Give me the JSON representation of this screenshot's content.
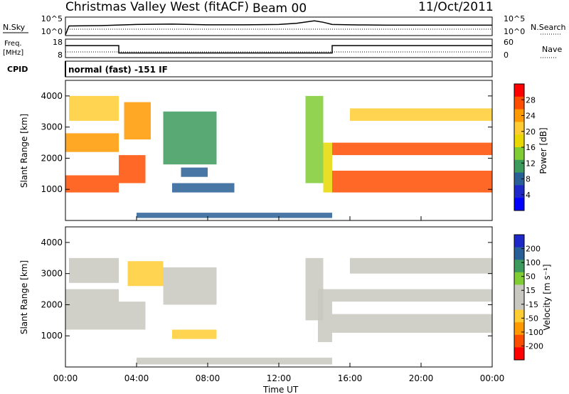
{
  "header": {
    "station": "Christmas Valley West (fitACF)",
    "beam": "Beam 00",
    "date": "11/Oct/2011"
  },
  "panels": {
    "nsky": {
      "label": "N.Sky",
      "left_ticks": [
        "10^5",
        "10^0"
      ],
      "right_ticks": [
        "10^5",
        "10^0"
      ],
      "right_label": "N.Search"
    },
    "freq": {
      "label_line1": "Freq.",
      "label_line2": "[MHz]",
      "left_ticks": [
        "18",
        "8"
      ],
      "right_ticks": [
        "60",
        "0"
      ],
      "right_label": "Nave"
    },
    "cpid": {
      "label": "CPID",
      "text": "normal (fast) -151 IF"
    },
    "power": {
      "ylabel": "Slant Range [km]",
      "yticks": [
        "4000",
        "3000",
        "2000",
        "1000"
      ],
      "colorbar_label": "Power [dB]",
      "colorbar_ticks": [
        "28",
        "24",
        "20",
        "16",
        "12",
        "8",
        "4"
      ],
      "colorbar_colors": [
        "#ff0000",
        "#ff4d00",
        "#ff9900",
        "#ffcc33",
        "#e8d800",
        "#7fcc33",
        "#3c9a5c",
        "#285f96",
        "#1e28c8",
        "#0000ff"
      ]
    },
    "velocity": {
      "ylabel": "Slant Range [km]",
      "yticks": [
        "4000",
        "3000",
        "2000",
        "1000"
      ],
      "colorbar_label": "Velocity [m s⁻¹]",
      "colorbar_ticks": [
        "200",
        "100",
        "50",
        "15",
        "-15",
        "-50",
        "-100",
        "-200"
      ],
      "colorbar_colors": [
        "#1e28c8",
        "#285f96",
        "#3c9a5c",
        "#7fcc33",
        "#c8c8c0",
        "#c8c8c0",
        "#ffcc33",
        "#ff9900",
        "#ff4d00",
        "#ff0000"
      ]
    }
  },
  "xaxis": {
    "ticks": [
      "00:00",
      "04:00",
      "08:00",
      "12:00",
      "16:00",
      "20:00",
      "00:00"
    ],
    "label": "Time UT"
  },
  "chart_data": [
    {
      "type": "line",
      "name": "N.Sky",
      "x_hours": [
        0,
        0.2,
        2,
        4,
        6,
        8,
        10,
        12,
        13,
        14,
        14.5,
        15,
        16,
        18,
        20,
        22,
        24
      ],
      "y_log": [
        0.2,
        2.6,
        2.7,
        3.0,
        3.1,
        2.9,
        2.9,
        3.0,
        3.3,
        4.0,
        3.6,
        3.0,
        2.9,
        2.8,
        2.8,
        2.8,
        2.8
      ]
    },
    {
      "type": "line",
      "name": "Freq",
      "steps": [
        {
          "from_hour": 0,
          "to_hour": 3.0,
          "mhz": 14.5
        },
        {
          "from_hour": 3.0,
          "to_hour": 15.0,
          "mhz": 10.5
        },
        {
          "from_hour": 15.0,
          "to_hour": 24,
          "mhz": 14.5
        }
      ],
      "ylim": [
        8,
        18
      ]
    },
    {
      "type": "heatmap",
      "name": "Power",
      "xlim": [
        0,
        24
      ],
      "ylim": [
        0,
        4500
      ],
      "zlim": [
        0,
        30
      ],
      "regions": [
        {
          "t0": 0,
          "t1": 3.0,
          "r0": 900,
          "r1": 1450,
          "z": 28
        },
        {
          "t0": 0,
          "t1": 3.0,
          "r0": 2200,
          "r1": 2800,
          "z": 24
        },
        {
          "t0": 0.2,
          "t1": 3.0,
          "r0": 3200,
          "r1": 4000,
          "z": 20
        },
        {
          "t0": 3.0,
          "t1": 4.5,
          "r0": 1200,
          "r1": 2100,
          "z": 26
        },
        {
          "t0": 3.3,
          "t1": 4.8,
          "r0": 2600,
          "r1": 3800,
          "z": 22
        },
        {
          "t0": 5.5,
          "t1": 8.5,
          "r0": 1800,
          "r1": 3500,
          "z": 10
        },
        {
          "t0": 6.0,
          "t1": 9.5,
          "r0": 900,
          "r1": 1200,
          "z": 6
        },
        {
          "t0": 6.5,
          "t1": 8.0,
          "r0": 1400,
          "r1": 1700,
          "z": 7
        },
        {
          "t0": 13.5,
          "t1": 14.5,
          "r0": 1200,
          "r1": 4000,
          "z": 14
        },
        {
          "t0": 14.5,
          "t1": 15.0,
          "r0": 900,
          "r1": 2500,
          "z": 16
        },
        {
          "t0": 15.0,
          "t1": 24,
          "r0": 900,
          "r1": 1600,
          "z": 28
        },
        {
          "t0": 15.0,
          "t1": 24,
          "r0": 2100,
          "r1": 2500,
          "z": 26
        },
        {
          "t0": 16.0,
          "t1": 24,
          "r0": 3200,
          "r1": 3600,
          "z": 20
        },
        {
          "t0": 4.0,
          "t1": 15.0,
          "r0": 80,
          "r1": 250,
          "z": 6
        }
      ]
    },
    {
      "type": "heatmap",
      "name": "Velocity",
      "xlim": [
        0,
        24
      ],
      "ylim": [
        0,
        4500
      ],
      "zlim": [
        -200,
        200
      ],
      "regions": [
        {
          "t0": 0,
          "t1": 3.0,
          "r0": 1200,
          "r1": 2500,
          "z": 0
        },
        {
          "t0": 0.2,
          "t1": 3.0,
          "r0": 2700,
          "r1": 3500,
          "z": 0
        },
        {
          "t0": 3.0,
          "t1": 4.5,
          "r0": 1200,
          "r1": 2100,
          "z": 0
        },
        {
          "t0": 3.5,
          "t1": 5.5,
          "r0": 2600,
          "r1": 3400,
          "z": -60
        },
        {
          "t0": 5.5,
          "t1": 8.5,
          "r0": 2000,
          "r1": 3200,
          "z": 0
        },
        {
          "t0": 6.0,
          "t1": 8.5,
          "r0": 900,
          "r1": 1200,
          "z": -60
        },
        {
          "t0": 13.5,
          "t1": 14.5,
          "r0": 1500,
          "r1": 3500,
          "z": -20
        },
        {
          "t0": 14.2,
          "t1": 15.0,
          "r0": 800,
          "r1": 2500,
          "z": 40
        },
        {
          "t0": 15.0,
          "t1": 24,
          "r0": 1100,
          "r1": 1700,
          "z": 0
        },
        {
          "t0": 15.0,
          "t1": 24,
          "r0": 2100,
          "r1": 2500,
          "z": 0
        },
        {
          "t0": 16.0,
          "t1": 24,
          "r0": 3000,
          "r1": 3500,
          "z": 0
        },
        {
          "t0": 4.0,
          "t1": 15.0,
          "r0": 80,
          "r1": 300,
          "z": 40
        }
      ]
    }
  ]
}
